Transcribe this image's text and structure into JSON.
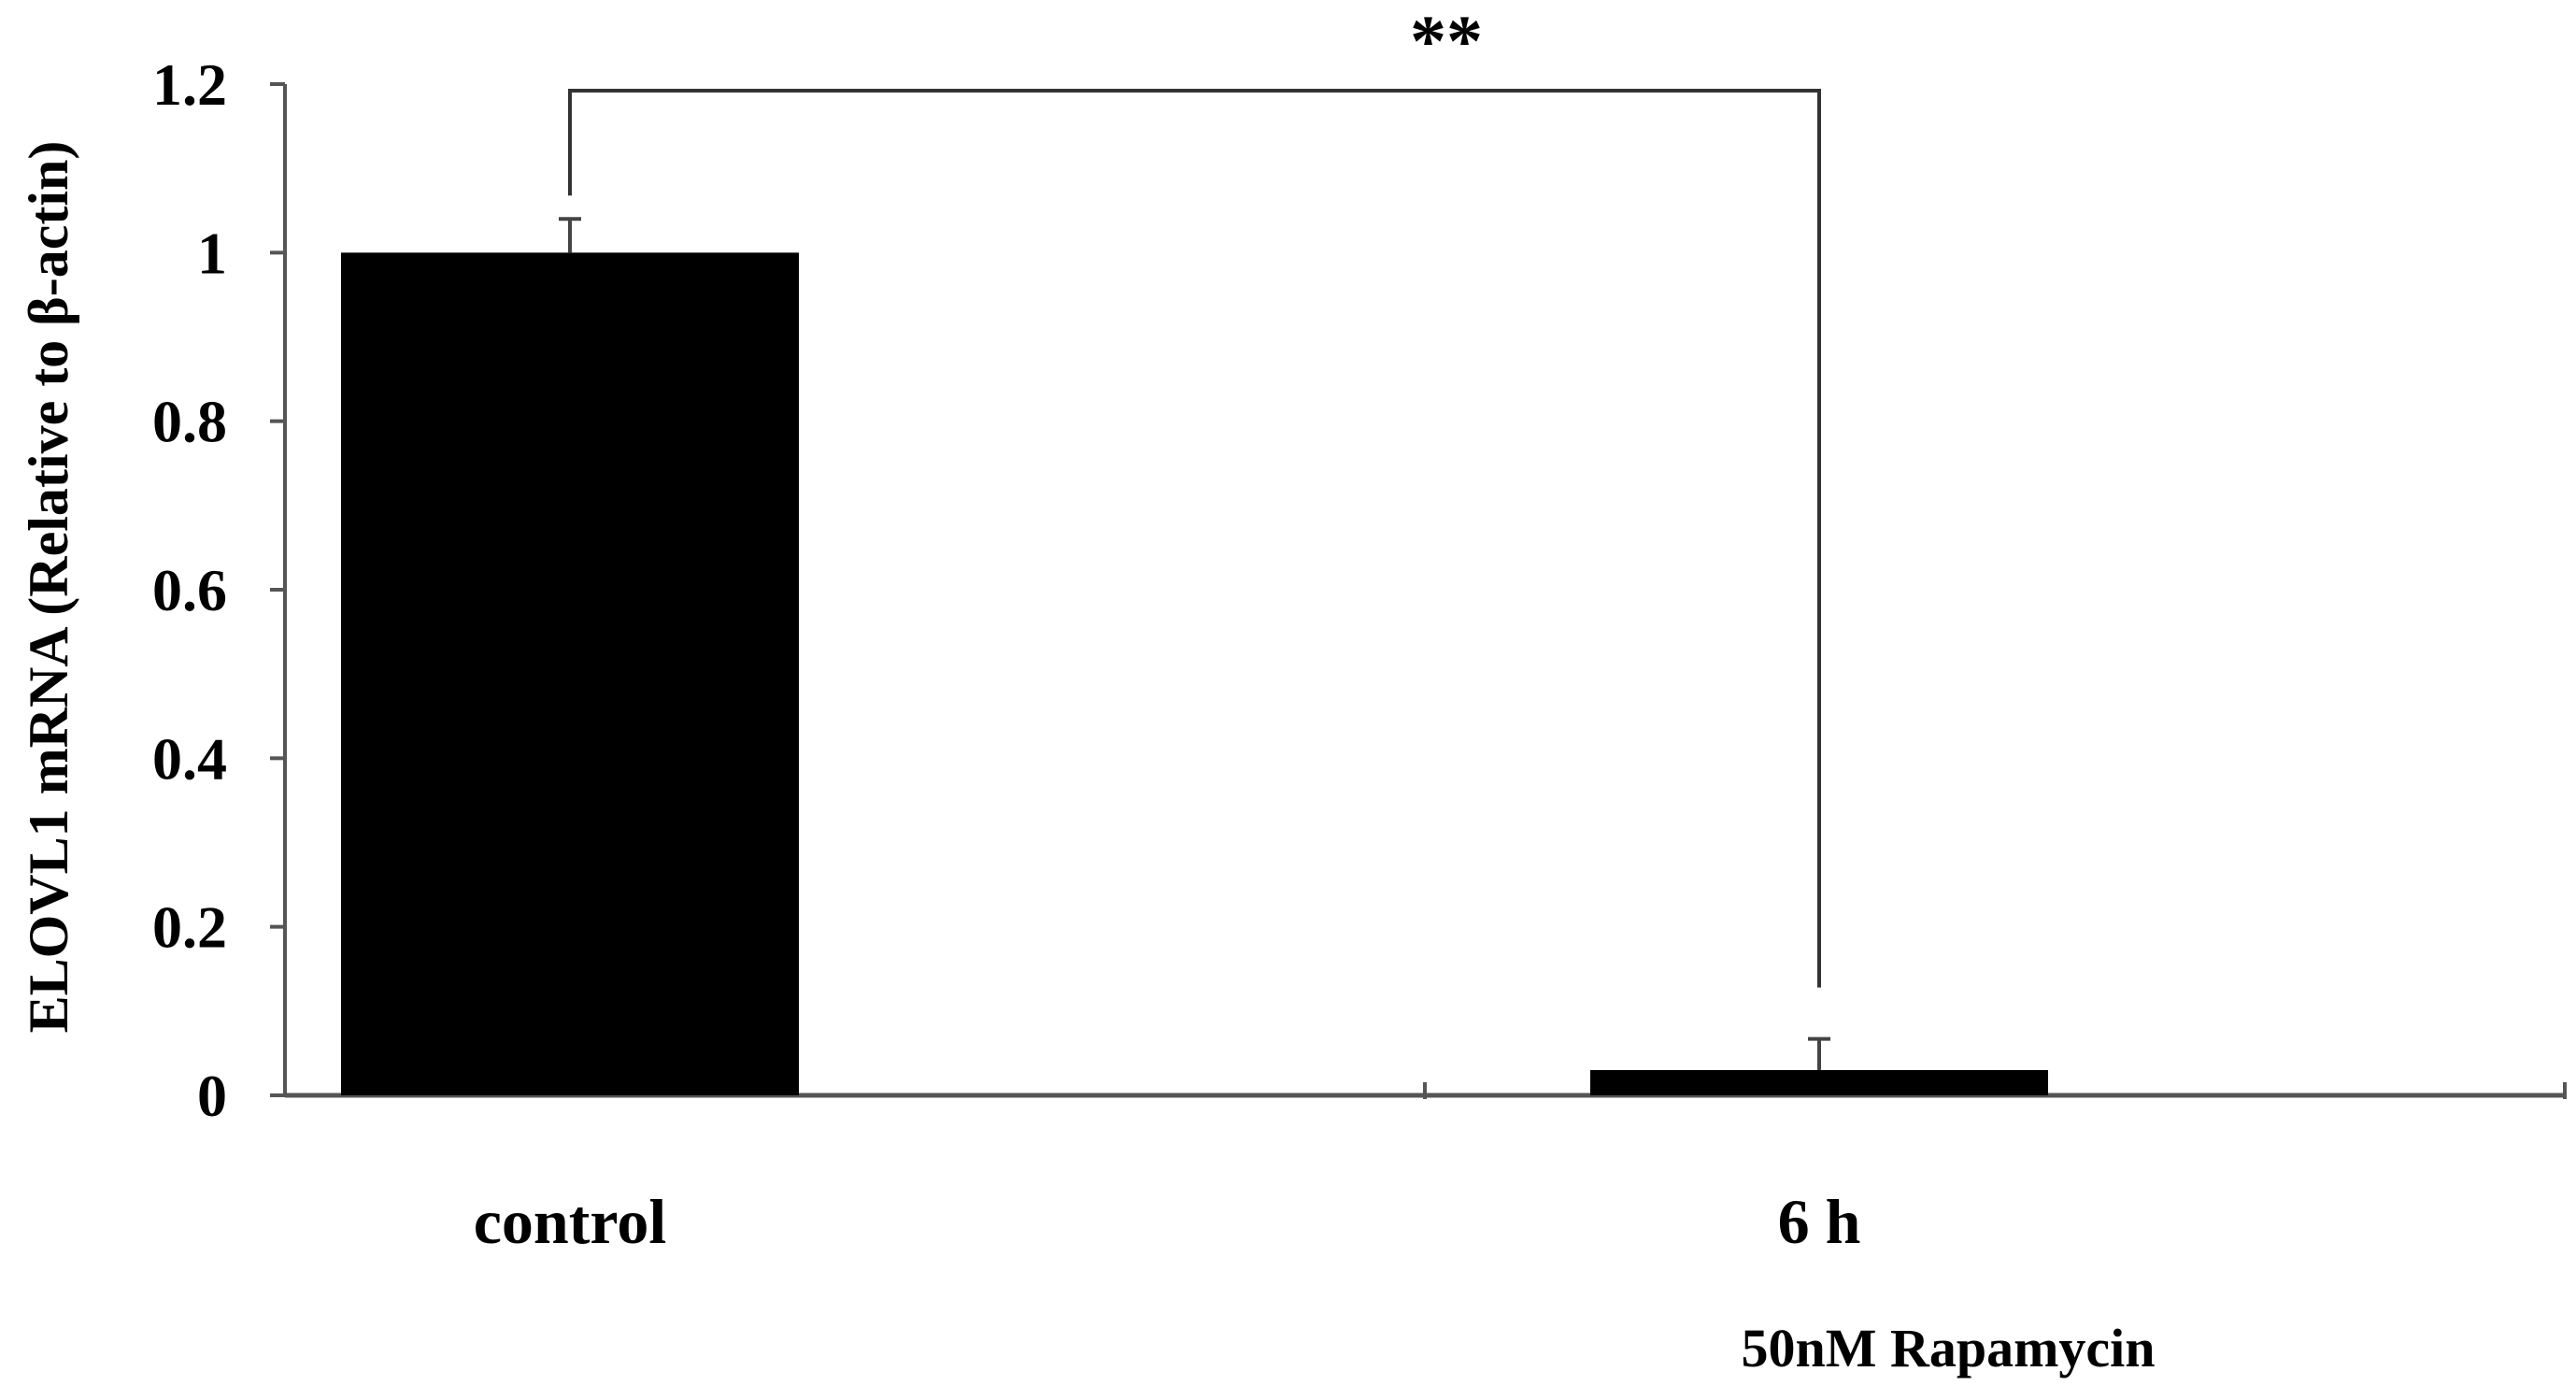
{
  "chart_data": {
    "type": "bar",
    "title": "",
    "ylabel": "ELOVL1 mRNA (Relative to β-actin)",
    "xlabel": "",
    "categories": [
      "control",
      "6 h"
    ],
    "category_sublabel": "50nM Rapamycin",
    "values": [
      1.0,
      0.03
    ],
    "errors": [
      0.04,
      0.037
    ],
    "ylim": [
      0,
      1.2
    ],
    "yticks": [
      0,
      0.2,
      0.4,
      0.6,
      0.8,
      1,
      1.2
    ],
    "ytick_labels": [
      "0",
      "0.2",
      "0.4",
      "0.6",
      "0.8",
      "1",
      "1.2"
    ],
    "grid": false,
    "legend": "none",
    "bar_color": "#000000",
    "significance": {
      "label": "**",
      "between": [
        "control",
        "6 h"
      ]
    }
  }
}
